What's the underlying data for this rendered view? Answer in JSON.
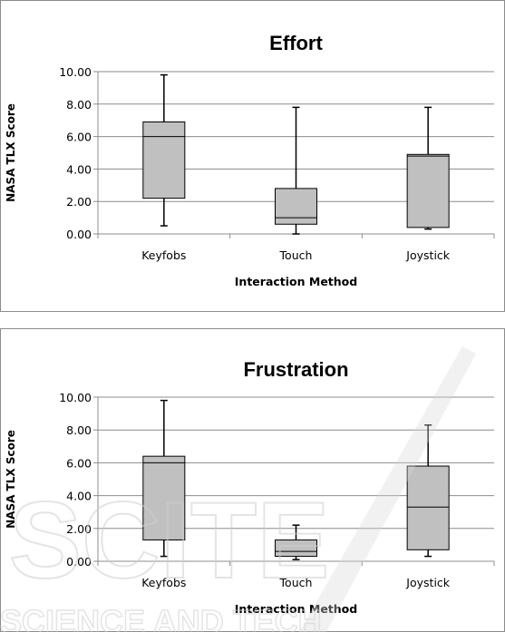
{
  "chart_data": [
    {
      "type": "boxplot",
      "title": "Effort",
      "xlabel": "Interaction Method",
      "ylabel": "NASA TLX Score",
      "ylim": [
        0,
        10
      ],
      "yticks": [
        "0.00",
        "2.00",
        "4.00",
        "6.00",
        "8.00",
        "10.00"
      ],
      "categories": [
        "Keyfobs",
        "Touch",
        "Joystick"
      ],
      "boxes": [
        {
          "min": 0.5,
          "q1": 2.2,
          "median": 6.0,
          "q3": 6.9,
          "max": 9.8
        },
        {
          "min": 0.0,
          "q1": 0.6,
          "median": 1.0,
          "q3": 2.8,
          "max": 7.8
        },
        {
          "min": 0.3,
          "q1": 0.4,
          "median": 4.8,
          "q3": 4.9,
          "max": 7.8
        }
      ],
      "grid": true,
      "box_color": "#c0c0c0"
    },
    {
      "type": "boxplot",
      "title": "Frustration",
      "xlabel": "Interaction Method",
      "ylabel": "NASA TLX Score",
      "ylim": [
        0,
        10
      ],
      "yticks": [
        "0.00",
        "2.00",
        "4.00",
        "6.00",
        "8.00",
        "10.00"
      ],
      "categories": [
        "Keyfobs",
        "Touch",
        "Joystick"
      ],
      "boxes": [
        {
          "min": 0.3,
          "q1": 1.3,
          "median": 6.0,
          "q3": 6.4,
          "max": 9.8
        },
        {
          "min": 0.1,
          "q1": 0.3,
          "median": 0.6,
          "q3": 1.3,
          "max": 2.2
        },
        {
          "min": 0.3,
          "q1": 0.7,
          "median": 3.3,
          "q3": 5.8,
          "max": 8.3
        }
      ],
      "grid": true,
      "box_color": "#c0c0c0"
    }
  ],
  "watermark": {
    "text_line1": "SCITE",
    "text_line2": "SCIENCE AND TECH"
  }
}
